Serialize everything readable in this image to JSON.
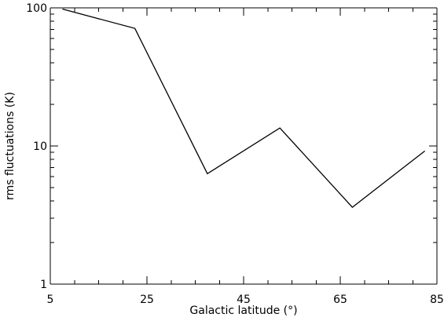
{
  "chart_data": {
    "type": "line",
    "title": "",
    "xlabel": "Galactic latitude (°)",
    "ylabel": "rms fluctuations (K)",
    "x_scale": "linear",
    "y_scale": "log",
    "xlim": [
      5,
      85
    ],
    "ylim": [
      1,
      100
    ],
    "x_ticks": [
      5,
      25,
      45,
      65,
      85
    ],
    "x_tick_labels": [
      "5",
      "25",
      "45",
      "65",
      "85"
    ],
    "y_ticks": [
      1,
      10,
      100
    ],
    "y_tick_labels": [
      "1",
      "10",
      "100"
    ],
    "grid": false,
    "legend": "none",
    "series": [
      {
        "x": [
          7.5,
          22.5,
          37.5,
          52.5,
          67.5,
          82.5
        ],
        "y": [
          98,
          71,
          6.3,
          13.5,
          3.6,
          9.2
        ]
      }
    ]
  }
}
